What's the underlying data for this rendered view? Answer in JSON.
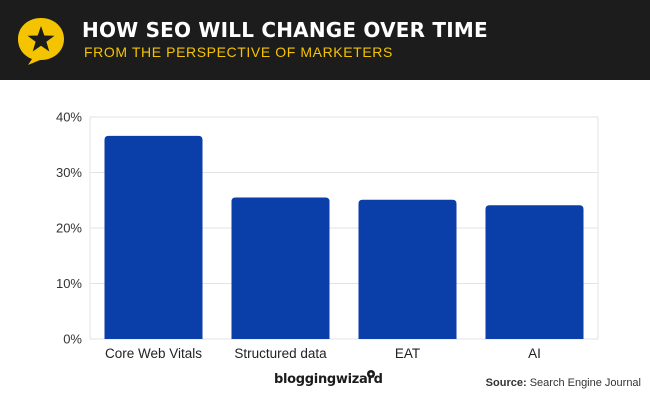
{
  "header": {
    "title": "HOW SEO WILL CHANGE OVER TIME",
    "subtitle": "FROM THE PERSPECTIVE OF MARKETERS",
    "logo_icon": "star-speech-bubble-icon",
    "title_color": "#ffffff",
    "subtitle_color": "#f5c400",
    "background": "#1c1c1c"
  },
  "chart_data": {
    "type": "bar",
    "categories": [
      "Core Web Vitals",
      "Structured data",
      "EAT",
      "AI"
    ],
    "values": [
      36.6,
      25.5,
      25.1,
      24.1
    ],
    "ylim": [
      0,
      40
    ],
    "yticks": [
      "0%",
      "10%",
      "20%",
      "30%",
      "40%"
    ],
    "bar_color": "#0a3ea8",
    "grid": true
  },
  "footer": {
    "brand": "bloggingwizard",
    "source_label": "Source:",
    "source_value": "Search Engine Journal"
  }
}
